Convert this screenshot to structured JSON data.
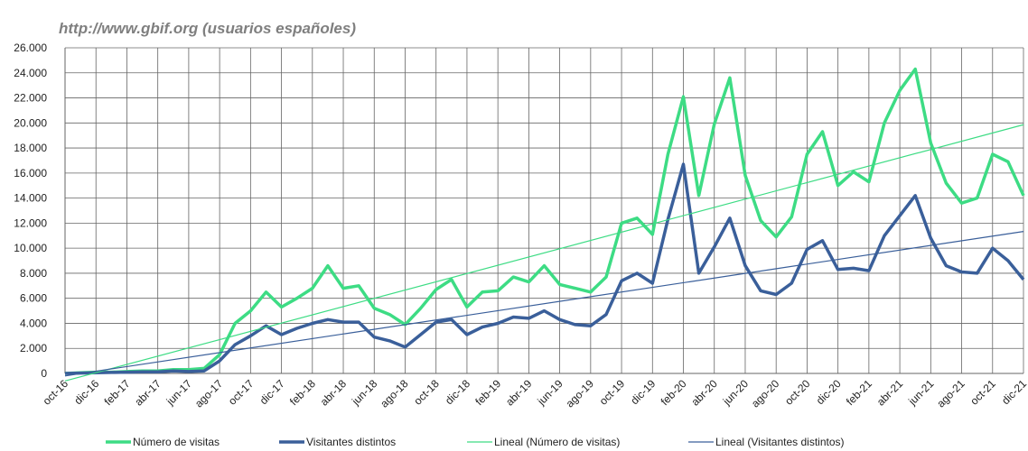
{
  "chart_data": {
    "type": "line",
    "title": "http://www.gbif.org (usuarios españoles)",
    "categories": [
      "oct-16",
      null,
      "dic-16",
      null,
      "feb-17",
      null,
      "abr-17",
      null,
      "jun-17",
      null,
      "ago-17",
      null,
      "oct-17",
      null,
      "dic-17",
      null,
      "feb-18",
      null,
      "abr-18",
      null,
      "jun-18",
      null,
      "ago-18",
      null,
      "oct-18",
      null,
      "dic-18",
      null,
      "feb-19",
      null,
      "abr-19",
      null,
      "jun-19",
      null,
      "ago-19",
      null,
      "oct-19",
      null,
      "dic-19",
      null,
      "feb-20",
      null,
      "abr-20",
      null,
      "jun-20",
      null,
      "ago-20",
      null,
      "oct-20",
      null,
      "dic-20",
      null,
      "feb-21",
      null,
      "abr-21",
      null,
      "jun-21",
      null,
      "ago-21",
      null,
      "oct-21",
      null,
      "dic-21"
    ],
    "series": [
      {
        "name": "Número de visitas",
        "color": "#3ddc84",
        "values": [
          0,
          50,
          100,
          100,
          150,
          200,
          200,
          300,
          300,
          400,
          1500,
          4000,
          5000,
          6500,
          5300,
          6000,
          6800,
          8600,
          6800,
          7000,
          5200,
          4700,
          3900,
          5200,
          6700,
          7500,
          5300,
          6500,
          6600,
          7700,
          7300,
          8600,
          7100,
          6800,
          6500,
          7700,
          12000,
          12400,
          11100,
          17500,
          22100,
          14200,
          19900,
          23600,
          15800,
          12200,
          10900,
          12500,
          17500,
          19300,
          15000,
          16100,
          15300,
          20000,
          22600,
          24300,
          18400,
          15200,
          13600,
          14000,
          17500,
          16900,
          14200
        ]
      },
      {
        "name": "Visitantes distintos",
        "color": "#3a5f9a",
        "values": [
          0,
          30,
          60,
          80,
          100,
          120,
          130,
          200,
          150,
          200,
          1000,
          2300,
          3000,
          3800,
          3100,
          3600,
          4000,
          4300,
          4100,
          4100,
          2900,
          2600,
          2100,
          3100,
          4100,
          4300,
          3100,
          3700,
          4000,
          4500,
          4400,
          5000,
          4300,
          3900,
          3800,
          4700,
          7400,
          8000,
          7200,
          12300,
          16700,
          8000,
          10100,
          12400,
          8600,
          6600,
          6300,
          7200,
          9900,
          10600,
          8300,
          8400,
          8200,
          11000,
          12600,
          14200,
          10800,
          8600,
          8100,
          8000,
          10000,
          9000,
          7500
        ]
      },
      {
        "name": "Lineal (Número de visitas)",
        "color": "#3ddc84",
        "trendline_of": "Número de visitas"
      },
      {
        "name": "Lineal (Visitantes distintos)",
        "color": "#3a5f9a",
        "trendline_of": "Visitantes distintos"
      }
    ],
    "ylim": [
      0,
      26000
    ],
    "yticks": [
      0,
      {
        "value": 2000,
        "label": "2.000"
      },
      {
        "value": 4000,
        "label": "4.000"
      },
      {
        "value": 6000,
        "label": "6.000"
      },
      {
        "value": 8000,
        "label": "8.000"
      },
      {
        "value": 10000,
        "label": "10.000"
      },
      {
        "value": 12000,
        "label": "12.000"
      },
      {
        "value": 14000,
        "label": "14.000"
      },
      {
        "value": 16000,
        "label": "16.000"
      },
      {
        "value": 18000,
        "label": "18.000"
      },
      {
        "value": 20000,
        "label": "20.000"
      },
      {
        "value": 22000,
        "label": "22.000"
      },
      {
        "value": 24000,
        "label": "24.000"
      },
      {
        "value": 26000,
        "label": "26.000"
      }
    ],
    "grid": true,
    "legend": "bottom"
  }
}
